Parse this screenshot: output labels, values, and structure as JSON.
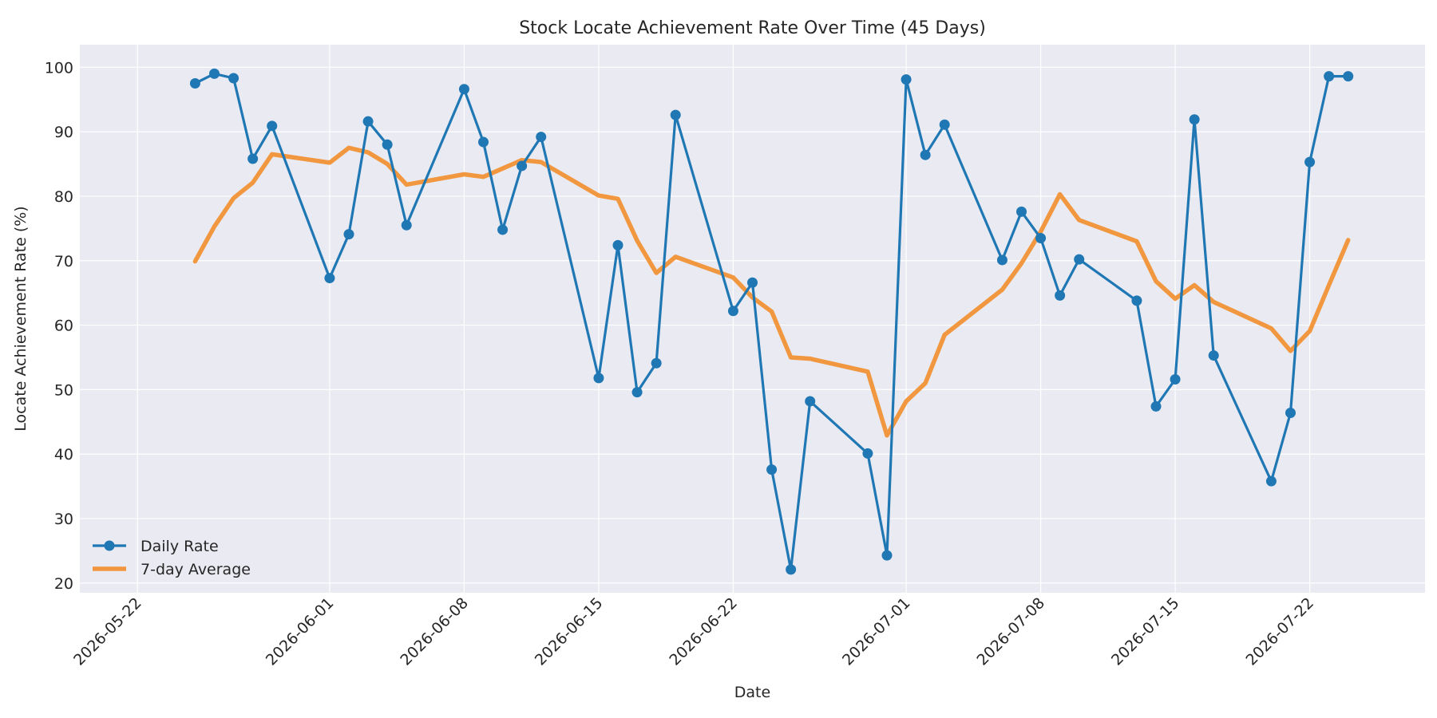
{
  "chart_data": {
    "type": "line",
    "title": "Stock Locate Achievement Rate Over Time (45 Days)",
    "xlabel": "Date",
    "ylabel": "Locate Achievement Rate (%)",
    "xlim": [
      "2026-05-19",
      "2026-07-28"
    ],
    "ylim": [
      18.5,
      103.5
    ],
    "grid": true,
    "legend_position": "lower-left",
    "x_ticks": [
      "2026-05-22",
      "2026-06-01",
      "2026-06-08",
      "2026-06-15",
      "2026-06-22",
      "2026-07-01",
      "2026-07-08",
      "2026-07-15",
      "2026-07-22"
    ],
    "y_ticks": [
      20,
      30,
      40,
      50,
      60,
      70,
      80,
      90,
      100
    ],
    "series": [
      {
        "name": "Daily Rate",
        "color": "#1f77b4",
        "marker": "circle",
        "points": [
          [
            "2026-05-25",
            97.5
          ],
          [
            "2026-05-26",
            99.0
          ],
          [
            "2026-05-27",
            98.3
          ],
          [
            "2026-05-28",
            85.8
          ],
          [
            "2026-05-29",
            90.9
          ],
          [
            "2026-06-01",
            67.3
          ],
          [
            "2026-06-02",
            74.1
          ],
          [
            "2026-06-03",
            91.6
          ],
          [
            "2026-06-04",
            88.0
          ],
          [
            "2026-06-05",
            75.5
          ],
          [
            "2026-06-08",
            96.6
          ],
          [
            "2026-06-09",
            88.4
          ],
          [
            "2026-06-10",
            74.8
          ],
          [
            "2026-06-11",
            84.7
          ],
          [
            "2026-06-12",
            89.2
          ],
          [
            "2026-06-15",
            51.8
          ],
          [
            "2026-06-16",
            72.4
          ],
          [
            "2026-06-17",
            49.6
          ],
          [
            "2026-06-18",
            54.1
          ],
          [
            "2026-06-19",
            92.6
          ],
          [
            "2026-06-22",
            62.2
          ],
          [
            "2026-06-23",
            66.6
          ],
          [
            "2026-06-24",
            37.6
          ],
          [
            "2026-06-25",
            22.1
          ],
          [
            "2026-06-26",
            48.2
          ],
          [
            "2026-06-29",
            40.1
          ],
          [
            "2026-06-30",
            24.3
          ],
          [
            "2026-07-01",
            98.1
          ],
          [
            "2026-07-02",
            86.4
          ],
          [
            "2026-07-03",
            91.1
          ],
          [
            "2026-07-06",
            70.1
          ],
          [
            "2026-07-07",
            77.6
          ],
          [
            "2026-07-08",
            73.5
          ],
          [
            "2026-07-09",
            64.6
          ],
          [
            "2026-07-10",
            70.2
          ],
          [
            "2026-07-13",
            63.8
          ],
          [
            "2026-07-14",
            47.4
          ],
          [
            "2026-07-15",
            51.6
          ],
          [
            "2026-07-16",
            91.9
          ],
          [
            "2026-07-17",
            55.3
          ],
          [
            "2026-07-20",
            35.8
          ],
          [
            "2026-07-21",
            46.4
          ],
          [
            "2026-07-22",
            85.3
          ],
          [
            "2026-07-23",
            98.6
          ],
          [
            "2026-07-24",
            98.6
          ]
        ]
      },
      {
        "name": "7-day Average",
        "color": "#f28e2b",
        "marker": "none",
        "points": [
          [
            "2026-05-25",
            69.9
          ],
          [
            "2026-05-26",
            75.3
          ],
          [
            "2026-05-27",
            79.7
          ],
          [
            "2026-05-28",
            82.1
          ],
          [
            "2026-05-29",
            86.5
          ],
          [
            "2026-06-01",
            85.2
          ],
          [
            "2026-06-02",
            87.5
          ],
          [
            "2026-06-03",
            86.8
          ],
          [
            "2026-06-04",
            85.0
          ],
          [
            "2026-06-05",
            81.8
          ],
          [
            "2026-06-08",
            83.4
          ],
          [
            "2026-06-09",
            83.0
          ],
          [
            "2026-06-10",
            84.3
          ],
          [
            "2026-06-11",
            85.6
          ],
          [
            "2026-06-12",
            85.3
          ],
          [
            "2026-06-15",
            80.1
          ],
          [
            "2026-06-16",
            79.6
          ],
          [
            "2026-06-17",
            73.1
          ],
          [
            "2026-06-18",
            68.1
          ],
          [
            "2026-06-19",
            70.6
          ],
          [
            "2026-06-22",
            67.4
          ],
          [
            "2026-06-23",
            64.3
          ],
          [
            "2026-06-24",
            62.1
          ],
          [
            "2026-06-25",
            55.0
          ],
          [
            "2026-06-26",
            54.8
          ],
          [
            "2026-06-29",
            52.8
          ],
          [
            "2026-06-30",
            42.9
          ],
          [
            "2026-07-01",
            48.2
          ],
          [
            "2026-07-02",
            51.0
          ],
          [
            "2026-07-03",
            58.5
          ],
          [
            "2026-07-06",
            65.5
          ],
          [
            "2026-07-07",
            69.6
          ],
          [
            "2026-07-08",
            74.5
          ],
          [
            "2026-07-09",
            80.3
          ],
          [
            "2026-07-10",
            76.3
          ],
          [
            "2026-07-13",
            73.0
          ],
          [
            "2026-07-14",
            66.8
          ],
          [
            "2026-07-15",
            64.1
          ],
          [
            "2026-07-16",
            66.2
          ],
          [
            "2026-07-17",
            63.6
          ],
          [
            "2026-07-20",
            59.5
          ],
          [
            "2026-07-21",
            56.0
          ],
          [
            "2026-07-22",
            59.1
          ],
          [
            "2026-07-23",
            66.2
          ],
          [
            "2026-07-24",
            73.2
          ]
        ]
      }
    ]
  }
}
